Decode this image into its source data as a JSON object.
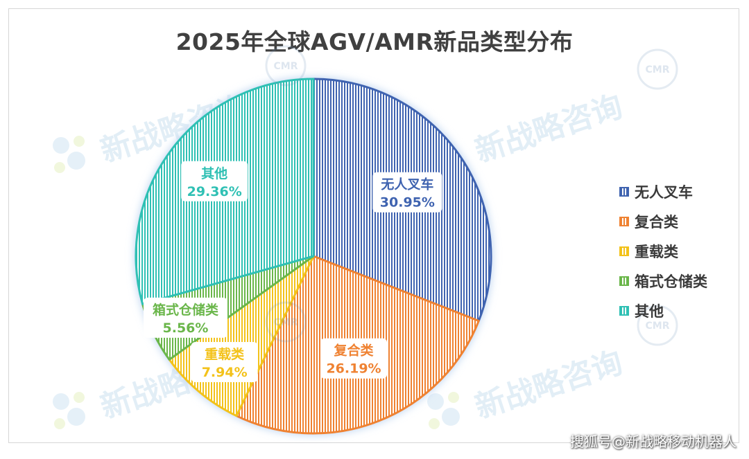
{
  "chart_data": {
    "type": "pie",
    "title": "2025年全球AGV/AMR新品类型分布",
    "slices": [
      {
        "label": "无人叉车",
        "value": 30.95,
        "display": "30.95%",
        "color": "#3f63b0"
      },
      {
        "label": "复合类",
        "value": 26.19,
        "display": "26.19%",
        "color": "#ef8232"
      },
      {
        "label": "重载类",
        "value": 7.94,
        "display": "7.94%",
        "color": "#f3c21a"
      },
      {
        "label": "箱式仓储类",
        "value": 5.56,
        "display": "5.56%",
        "color": "#6ab64a"
      },
      {
        "label": "其他",
        "value": 29.36,
        "display": "29.36%",
        "color": "#2fc0b4"
      }
    ],
    "legend_position": "right",
    "start_angle_deg": 0,
    "direction": "clockwise"
  },
  "watermark": {
    "text": "新战略咨询",
    "logo_text": "CMR"
  },
  "source_credit": "搜狐号@新战略移动机器人"
}
